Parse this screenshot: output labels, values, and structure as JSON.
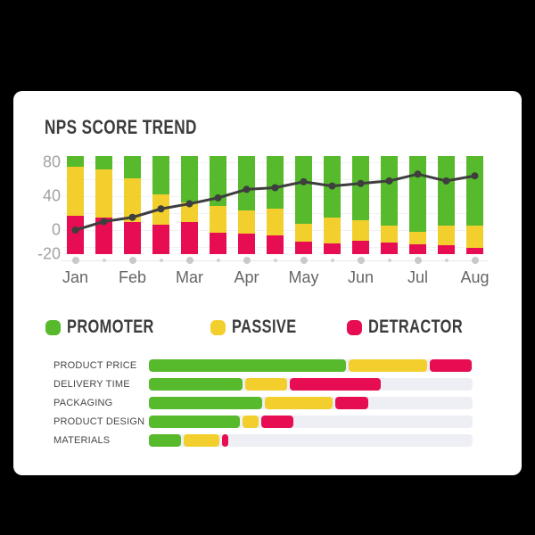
{
  "colors": {
    "promoter": "#57b92c",
    "passive": "#f3cf2d",
    "detractor": "#e70d53",
    "line": "#3e3e3e",
    "grid": "#f1f1f4",
    "track": "#edeff5",
    "axis_dot": "#c9c9c9"
  },
  "legend": {
    "items": [
      {
        "key": "promoter",
        "label": "PROMOTER"
      },
      {
        "key": "passive",
        "label": "PASSIVE"
      },
      {
        "key": "detractor",
        "label": "DETRACTOR"
      }
    ]
  },
  "chart_data": [
    {
      "type": "bar",
      "subtype": "stacked-percent-columns-with-line",
      "title": "NPS SCORE TREND",
      "legend_position": "bottom",
      "grid": true,
      "y_ticks": [
        "80",
        "40",
        "0",
        "-20"
      ],
      "y_grid": [
        80,
        60,
        40,
        20,
        0,
        -20
      ],
      "ylim": [
        -20,
        95
      ],
      "categories": [
        "Jan",
        "",
        "Feb",
        "",
        "Mar",
        "",
        "Apr",
        "",
        "May",
        "",
        "Jun",
        "",
        "Jul",
        "",
        "Aug"
      ],
      "series": [
        {
          "key": "promoter",
          "name": "Promoter",
          "values": [
            11,
            14,
            23,
            39,
            47,
            51,
            55,
            54,
            69,
            63,
            65,
            71,
            77,
            71,
            71
          ]
        },
        {
          "key": "passive",
          "name": "Passive",
          "values": [
            50,
            49,
            44,
            31,
            20,
            27,
            24,
            27,
            18,
            26,
            21,
            17,
            13,
            20,
            23
          ]
        },
        {
          "key": "detractor",
          "name": "Detractor",
          "values": [
            39,
            37,
            33,
            30,
            33,
            22,
            21,
            19,
            13,
            11,
            14,
            12,
            10,
            9,
            6
          ]
        }
      ],
      "line": {
        "name": "NPS score",
        "values": [
          0,
          10,
          15,
          25,
          31,
          38,
          48,
          50,
          57,
          52,
          55,
          58,
          66,
          58,
          64
        ]
      }
    },
    {
      "type": "bar",
      "subtype": "horizontal-stacked-percent",
      "unit": "percent",
      "categories": [
        "PRODUCT PRICE",
        "DELIVERY TIME",
        "PACKAGING",
        "PRODUCT DESIGN",
        "MATERIALS"
      ],
      "series": [
        {
          "key": "promoter",
          "name": "Promoter",
          "values": [
            61,
            29,
            35,
            28,
            10
          ]
        },
        {
          "key": "passive",
          "name": "Passive",
          "values": [
            24,
            13,
            21,
            5,
            11
          ]
        },
        {
          "key": "detractor",
          "name": "Detractor",
          "values": [
            13,
            28,
            10,
            10,
            2
          ]
        }
      ]
    }
  ]
}
